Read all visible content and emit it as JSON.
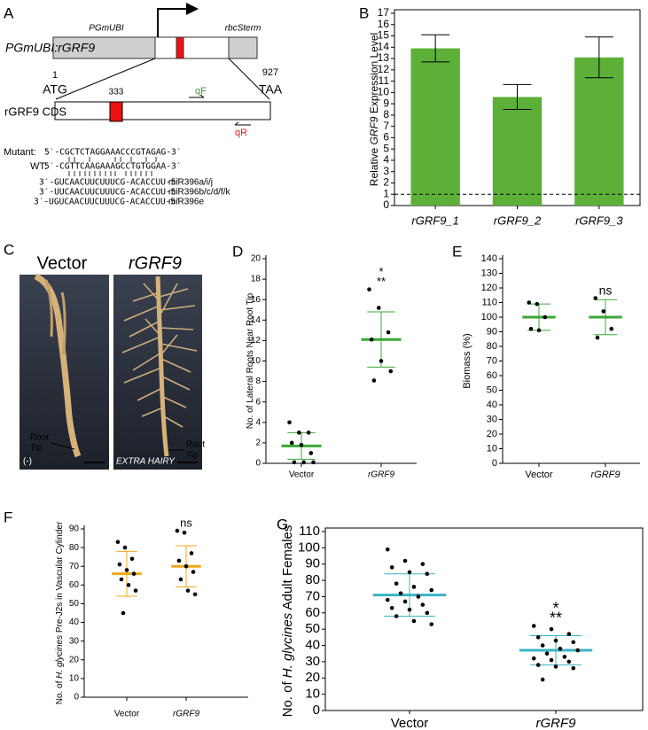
{
  "diagram": {
    "panel_label": "A",
    "construct_label": "PGmUBI:rGRF9",
    "promoter": "PGmUBI",
    "terminator": "rbcSterm",
    "start_pos": 1,
    "start_codon": "ATG",
    "end_pos": 927,
    "stop_codon": "TAA",
    "cds_label": "rGRF9 CDS",
    "site_pos": 333,
    "forward_primer": "qF",
    "reverse_primer": "qR",
    "mutant_label": "Mutant:",
    "mutant_seq": "5′-CGCTCTAGGAAACCCGTAGAG-3′",
    "wt_label": "WT:",
    "wt_seq": "5′-CGTTCAAGAAAGCCTGTGGAA-3′",
    "mirnas": [
      {
        "seq": "3′-GUCAACUUCUUUCG-ACACCUU-5′",
        "name": "miR396a/i/j"
      },
      {
        "seq": "3′-UUCAACUUCUUUCG-ACACCUU-5′",
        "name": "miR396b/c/d/f/k"
      },
      {
        "seq": "3′-UGUCAACUUCUUUCG-ACACCUU-5′",
        "name": "miR396e"
      }
    ]
  },
  "photo": {
    "panel_label": "C",
    "left_title": "Vector",
    "right_title": "rGRF9",
    "left_tip": [
      "Root",
      "Tip"
    ],
    "right_tip": [
      "Root",
      "Tip"
    ],
    "left_note": "(-)",
    "right_note": "EXTRA HAIRY"
  },
  "chart_data": [
    {
      "type": "bar",
      "panel_label": "B",
      "ylabel": [
        "Relative ",
        "GRF9",
        " Expression Level"
      ],
      "ylabel_italic": [
        false,
        true,
        false
      ],
      "categories": [
        "rGRF9_1",
        "rGRF9_2",
        "rGRF9_3"
      ],
      "category_italic": [
        true,
        true,
        true
      ],
      "values": [
        13.9,
        9.6,
        13.1
      ],
      "errors": [
        1.2,
        1.1,
        1.8
      ],
      "color": "#5cb038",
      "reference_line": 1,
      "ylim": [
        0,
        17
      ],
      "yticks": [
        0,
        1,
        2,
        3,
        4,
        5,
        6,
        7,
        8,
        9,
        10,
        11,
        12,
        13,
        14,
        15,
        16,
        17
      ]
    },
    {
      "type": "dot",
      "panel_label": "D",
      "ylabel": [
        "No. of Lateral Roots Near Root Tip"
      ],
      "ylabel_italic": [
        false
      ],
      "categories": [
        "Vector",
        "rGRF9"
      ],
      "category_italic": [
        false,
        true
      ],
      "values": [
        [
          4,
          3,
          3,
          2,
          1.8,
          1,
          0.1,
          0.1,
          0.1
        ],
        [
          17,
          15.2,
          12.8,
          12.1,
          10,
          9,
          8.1
        ]
      ],
      "means": [
        1.7,
        12.1
      ],
      "sds": [
        1.3,
        2.7
      ],
      "color": "#3aa835",
      "annotations": [
        [],
        [
          "*",
          "**"
        ]
      ],
      "ylim": [
        0,
        20
      ],
      "yticks": [
        0,
        2,
        4,
        6,
        8,
        10,
        12,
        14,
        16,
        18,
        20
      ]
    },
    {
      "type": "dot",
      "panel_label": "E",
      "ylabel": [
        "Biomass (%)"
      ],
      "ylabel_italic": [
        false
      ],
      "categories": [
        "Vector",
        "rGRF9"
      ],
      "category_italic": [
        false,
        true
      ],
      "values": [
        [
          110,
          109,
          100,
          92,
          91
        ],
        [
          113,
          104,
          92,
          86
        ]
      ],
      "means": [
        100,
        100
      ],
      "sds": [
        9,
        12
      ],
      "color": "#3aa835",
      "annotations": [
        [],
        [
          "ns"
        ]
      ],
      "ylim": [
        0,
        140
      ],
      "yticks": [
        0,
        10,
        20,
        30,
        40,
        50,
        60,
        70,
        80,
        90,
        100,
        110,
        120,
        130,
        140
      ]
    },
    {
      "type": "dot",
      "panel_label": "F",
      "ylabel": [
        "No. of ",
        "H. glycines",
        " Pre-J2s in Vascular Cylinder"
      ],
      "ylabel_italic": [
        false,
        true,
        false
      ],
      "categories": [
        "Vector",
        "rGRF9"
      ],
      "category_italic": [
        false,
        true
      ],
      "values": [
        [
          83,
          80,
          74,
          71,
          68,
          66,
          63,
          60,
          57,
          45
        ],
        [
          89,
          88,
          77,
          73,
          70,
          67,
          63,
          57,
          55
        ]
      ],
      "means": [
        66,
        70
      ],
      "sds": [
        12,
        11
      ],
      "color": "#f0a818",
      "annotations": [
        [],
        [
          "ns"
        ]
      ],
      "ylim": [
        0,
        90
      ],
      "yticks": [
        0,
        10,
        20,
        30,
        40,
        50,
        60,
        70,
        80,
        90
      ]
    },
    {
      "type": "dot",
      "panel_label": "G",
      "ylabel": [
        "No. of ",
        "H. glycines",
        " Adult Females"
      ],
      "ylabel_italic": [
        false,
        true,
        false
      ],
      "categories": [
        "Vector",
        "rGRF9"
      ],
      "category_italic": [
        false,
        true
      ],
      "values": [
        [
          99,
          92,
          90,
          88,
          85,
          84,
          78,
          76,
          74,
          72,
          70,
          68,
          67,
          65,
          63,
          62,
          60,
          58,
          55,
          53
        ],
        [
          52,
          50,
          47,
          45,
          43,
          42,
          40,
          38,
          37,
          35,
          33,
          32,
          31,
          30,
          28,
          27,
          26,
          19
        ]
      ],
      "means": [
        71,
        37
      ],
      "sds": [
        13,
        9
      ],
      "color": "#3ab5c5",
      "annotations": [
        [],
        [
          "*",
          "**"
        ]
      ],
      "ylim": [
        0,
        110
      ],
      "yticks": [
        0,
        10,
        20,
        30,
        40,
        50,
        60,
        70,
        80,
        90,
        100,
        110
      ]
    }
  ]
}
